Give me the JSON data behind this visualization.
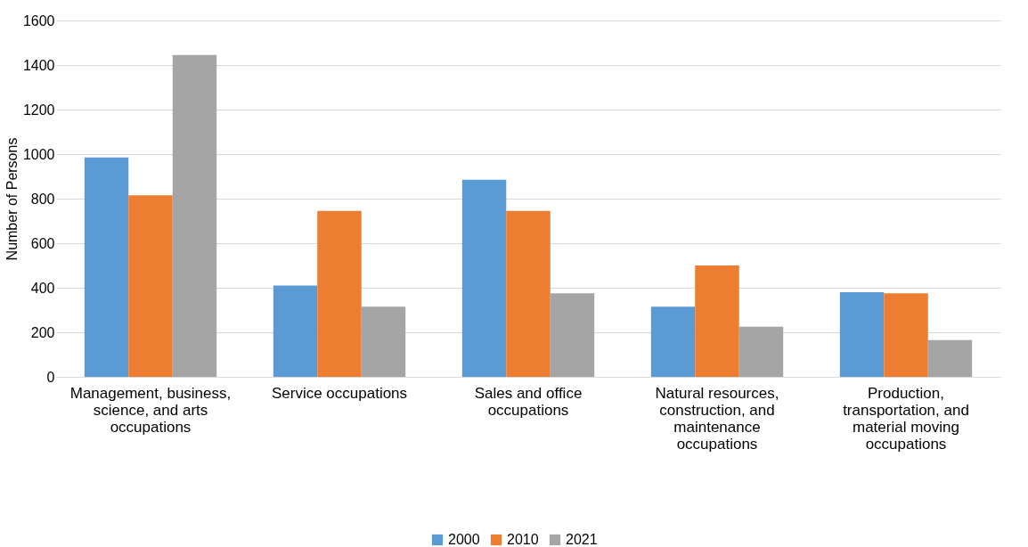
{
  "chart_data": {
    "type": "bar",
    "ylabel": "Number of Persons",
    "categories": [
      "Management, business, science, and arts occupations",
      "Service occupations",
      "Sales and office occupations",
      "Natural resources, construction, and maintenance occupations",
      "Production, transportation, and material moving occupations"
    ],
    "series": [
      {
        "name": "2000",
        "color": "#5b9bd5",
        "values": [
          985,
          410,
          885,
          315,
          380
        ]
      },
      {
        "name": "2010",
        "color": "#ed7d31",
        "values": [
          815,
          745,
          745,
          500,
          375
        ]
      },
      {
        "name": "2021",
        "color": "#a5a5a5",
        "values": [
          1445,
          315,
          375,
          225,
          165
        ]
      }
    ],
    "ylim": [
      0,
      1600
    ],
    "yticks": [
      0,
      200,
      400,
      600,
      800,
      1000,
      1200,
      1400,
      1600
    ],
    "grid": "y",
    "legend": "bottom"
  }
}
